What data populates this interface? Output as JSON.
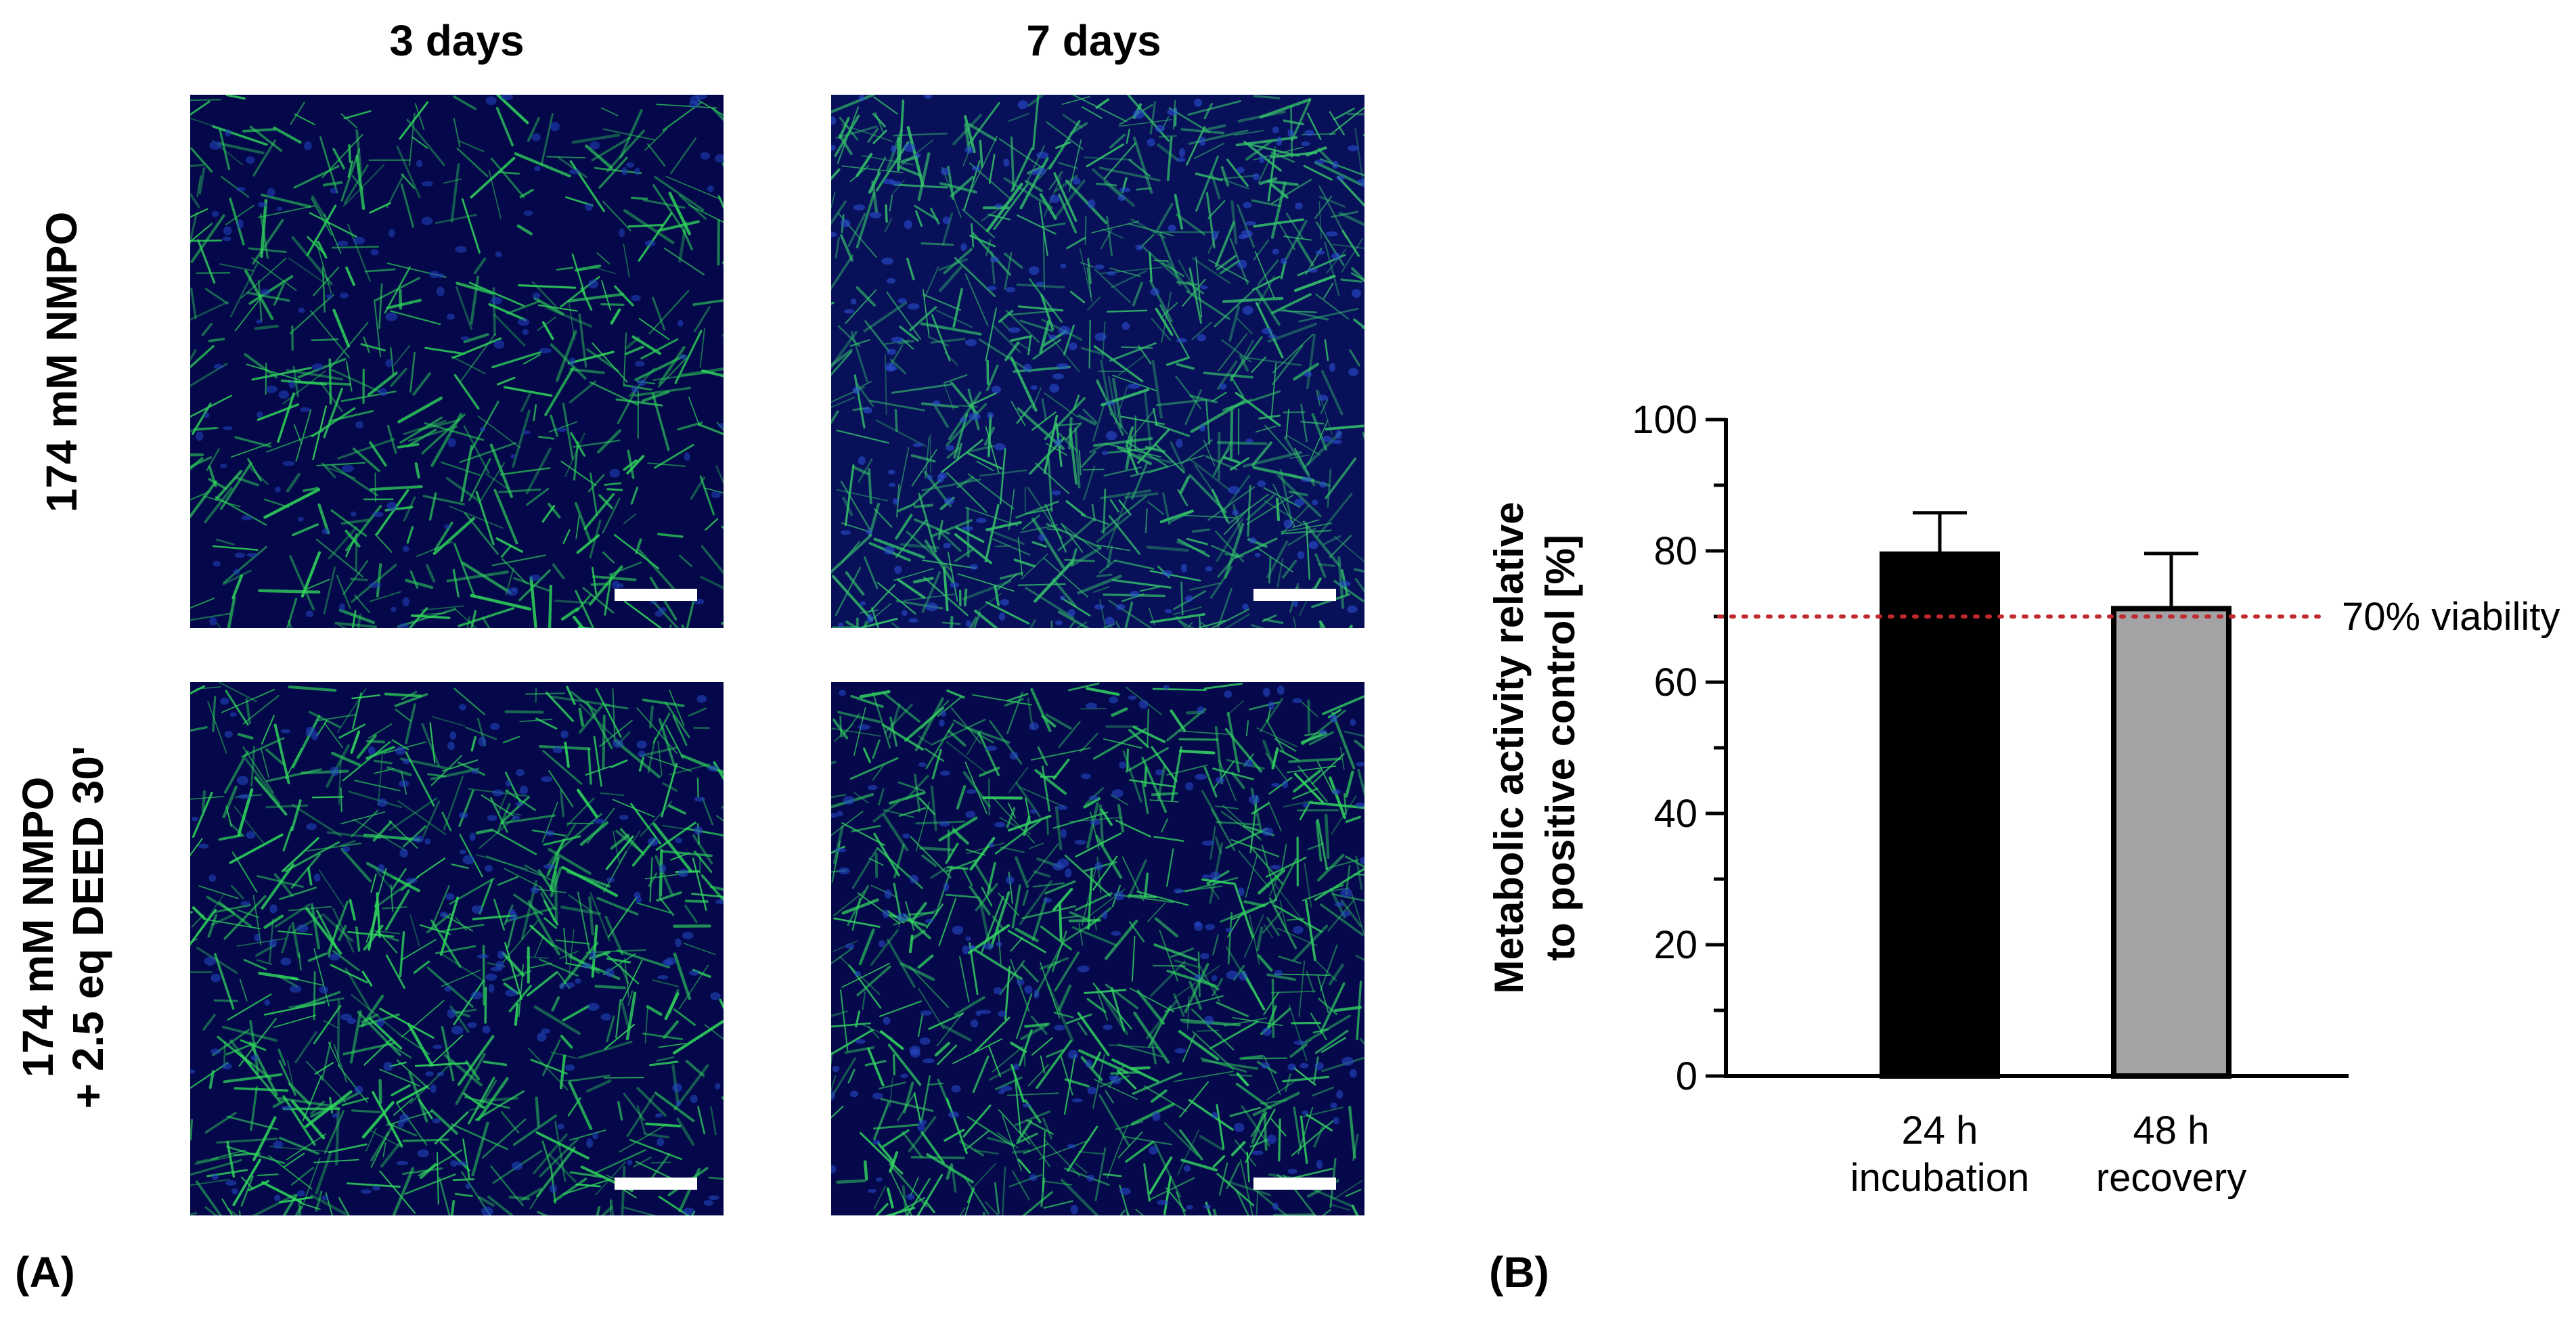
{
  "panel_a": {
    "label": "(A)",
    "columns": [
      "3 days",
      "7 days"
    ],
    "rows": [
      "174 mM NMPO",
      "174 mM NMPO",
      "+ 2.5 eq DEED 30'"
    ],
    "images": [
      {
        "name": "micrograph-nmpo-3-days",
        "colors": {
          "background": "#04084a",
          "actin": "#2fd25a",
          "nuclei": "#1f3fb8"
        },
        "seed": 11,
        "density": 0.55
      },
      {
        "name": "micrograph-nmpo-7-days",
        "colors": {
          "background": "#08105a",
          "actin": "#35c46a",
          "nuclei": "#2a4fd0"
        },
        "seed": 23,
        "density": 0.85
      },
      {
        "name": "micrograph-nmpo-deed-3-days",
        "colors": {
          "background": "#04084a",
          "actin": "#30d85c",
          "nuclei": "#2346c0"
        },
        "seed": 37,
        "density": 0.75
      },
      {
        "name": "micrograph-nmpo-deed-7-days",
        "colors": {
          "background": "#05094c",
          "actin": "#33d460",
          "nuclei": "#2548c4"
        },
        "seed": 53,
        "density": 0.8
      }
    ]
  },
  "panel_b": {
    "label": "(B)"
  },
  "chart_data": {
    "type": "bar",
    "categories": [
      [
        "24 h",
        "incubation"
      ],
      [
        "48 h",
        "recovery"
      ]
    ],
    "values": [
      79.5,
      71.2
    ],
    "error_plus": [
      6.3,
      8.4
    ],
    "bar_colors": [
      "#000000",
      "#a3a3a6"
    ],
    "ylabel_lines": [
      "Metabolic activity relative",
      "to positive control [%]"
    ],
    "ylim": [
      0,
      100
    ],
    "yticks": [
      0,
      20,
      40,
      60,
      80,
      100
    ],
    "minor_tick_step": 10,
    "reference_line": {
      "value": 70,
      "label": "70% viability",
      "color": "#c0292e",
      "style": "dotted"
    },
    "grid": false
  }
}
